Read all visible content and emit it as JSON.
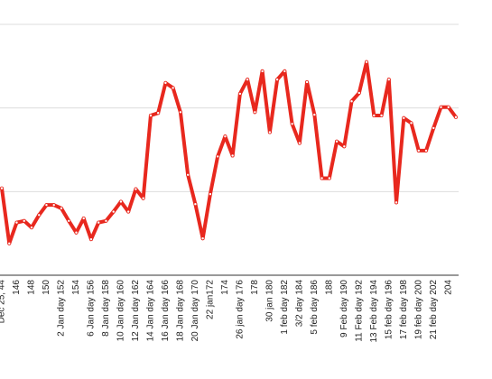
{
  "chart_data": {
    "type": "line",
    "categories": [
      "Dec 25, 44",
      null,
      "146",
      null,
      "148",
      null,
      "150",
      null,
      "2 Jan day 152",
      null,
      "154",
      null,
      "6 Jan day 156",
      null,
      "8 Jan day 158",
      null,
      "10 Jan day 160",
      null,
      "12 Jan day 162",
      null,
      "14 Jan day 164",
      null,
      "16 Jan day 166",
      null,
      "18 Jan day 168",
      null,
      "20 Jan day 170",
      null,
      "22 jan172",
      null,
      "174",
      null,
      "26 jan day 176",
      null,
      "178",
      null,
      "30 jan 180",
      null,
      "1 feb day 182",
      null,
      "3/2 day 184",
      null,
      "5 feb day 186",
      null,
      "188",
      null,
      "9 Feb day 190",
      null,
      "11 Feb day 192",
      null,
      "13 Feb day 194",
      null,
      "15 feb day 196",
      null,
      "17 feb day 198",
      null,
      "19 feb day 200",
      null,
      "21 feb day 202",
      null,
      "204",
      null
    ],
    "series": [
      {
        "color": "#e8281e",
        "values": [
          1.04,
          0.38,
          0.63,
          0.65,
          0.57,
          0.72,
          0.84,
          0.84,
          0.8,
          0.65,
          0.51,
          0.68,
          0.43,
          0.63,
          0.65,
          0.76,
          0.88,
          0.76,
          1.03,
          0.92,
          1.91,
          1.94,
          2.3,
          2.24,
          1.95,
          1.2,
          0.85,
          0.44,
          0.97,
          1.42,
          1.66,
          1.43,
          2.17,
          2.34,
          1.95,
          2.44,
          1.71,
          2.34,
          2.44,
          1.81,
          1.58,
          2.31,
          1.92,
          1.16,
          1.16,
          1.6,
          1.54,
          2.08,
          2.18,
          2.55,
          1.91,
          1.91,
          2.34,
          0.87,
          1.88,
          1.82,
          1.49,
          1.49,
          1.76,
          2.01,
          2.01,
          1.89
        ]
      }
    ],
    "ylim": [
      0,
      3
    ],
    "yticks": [
      0,
      1,
      2,
      3
    ],
    "grid": true
  }
}
